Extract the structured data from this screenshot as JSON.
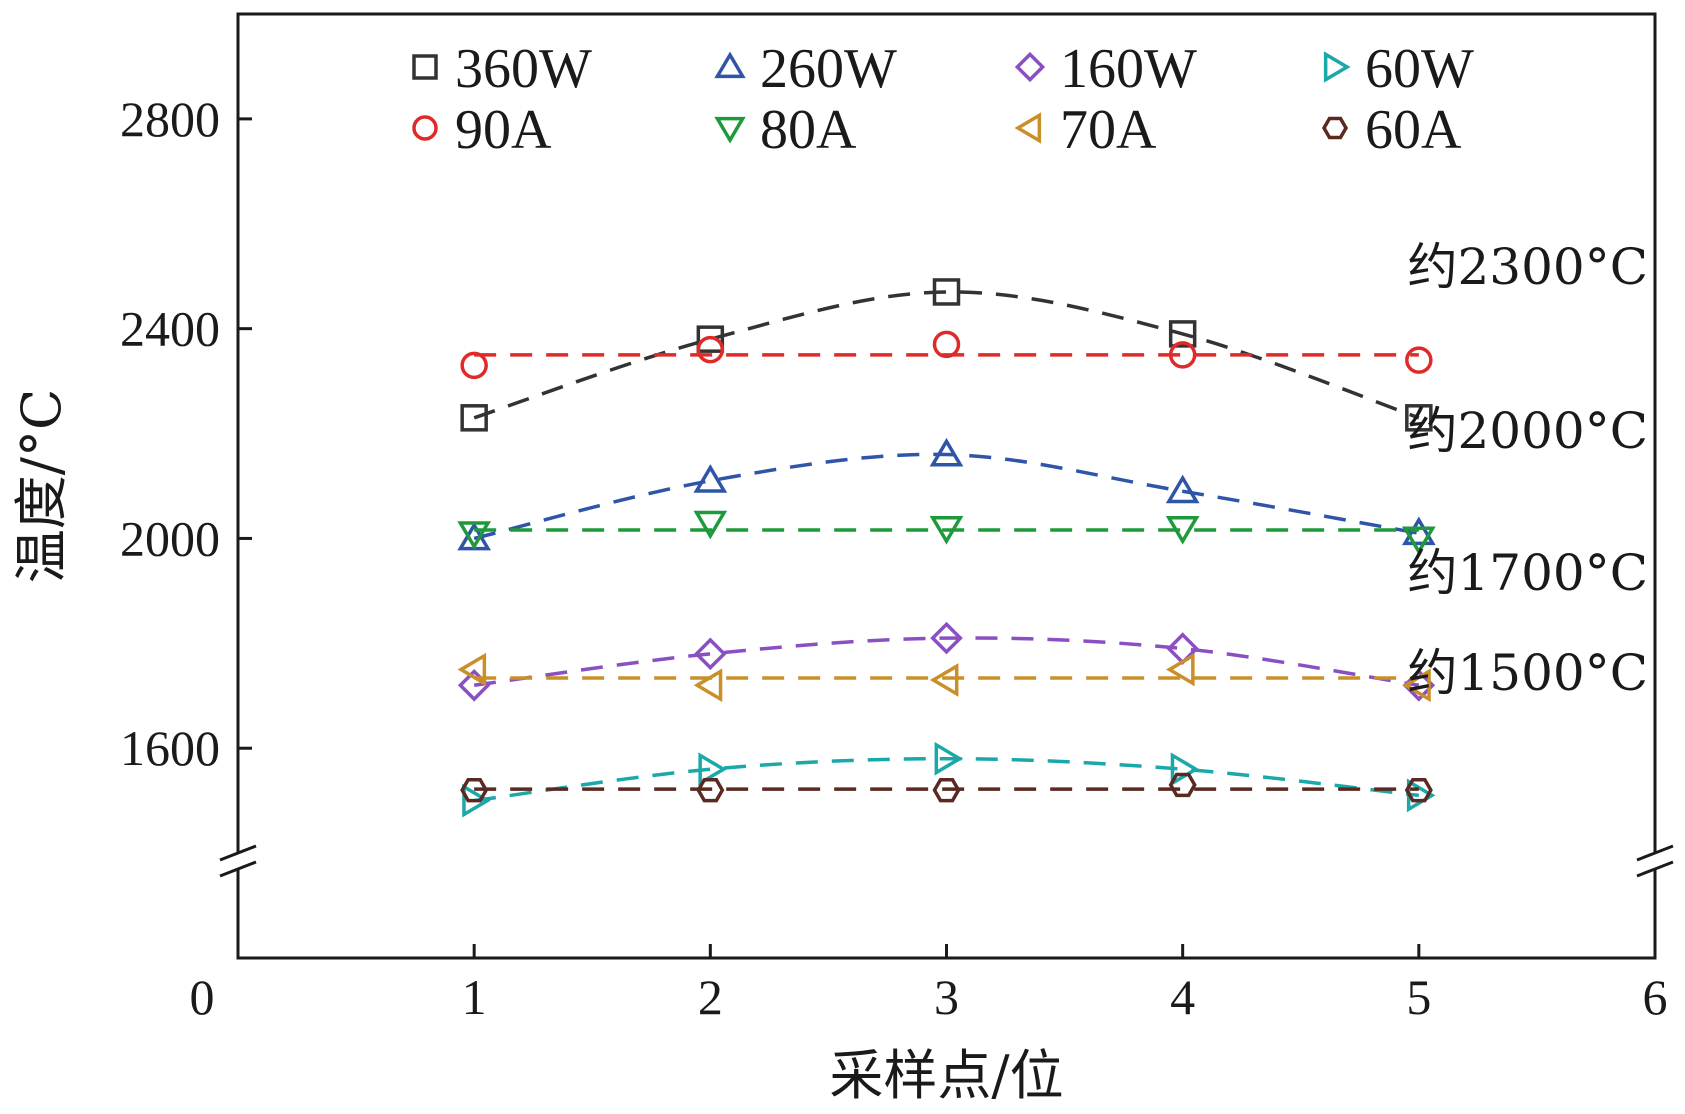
{
  "chart_data": {
    "type": "line",
    "xlabel": "采样点/位",
    "ylabel": "温度/°C",
    "xlim": [
      0,
      6
    ],
    "ylim": [
      1200,
      3000
    ],
    "axis_break": "y-axis, below 1600",
    "x_ticks": [
      "0",
      "1",
      "2",
      "3",
      "4",
      "5",
      "6"
    ],
    "y_ticks": [
      "1600",
      "2000",
      "2400",
      "2800"
    ],
    "x": [
      1,
      2,
      3,
      4,
      5
    ],
    "legend_position": "top, 4 columns",
    "series": [
      {
        "name": "360W",
        "color": "#333333",
        "marker": "square",
        "values": [
          2230,
          2380,
          2470,
          2390,
          2230
        ]
      },
      {
        "name": "260W",
        "color": "#2e55a8",
        "marker": "triangle-up",
        "values": [
          2000,
          2110,
          2160,
          2090,
          2010
        ]
      },
      {
        "name": "160W",
        "color": "#8a4fc2",
        "marker": "diamond",
        "values": [
          1720,
          1780,
          1810,
          1790,
          1720
        ]
      },
      {
        "name": "60W",
        "color": "#1aa8a8",
        "marker": "triangle-right",
        "values": [
          1500,
          1560,
          1580,
          1560,
          1510
        ]
      },
      {
        "name": "90A",
        "color": "#e02a2a",
        "marker": "circle",
        "values": [
          2330,
          2360,
          2370,
          2350,
          2340
        ]
      },
      {
        "name": "80A",
        "color": "#1f9a3a",
        "marker": "triangle-down",
        "values": [
          2010,
          2030,
          2020,
          2020,
          2000
        ]
      },
      {
        "name": "70A",
        "color": "#c9902a",
        "marker": "triangle-left",
        "values": [
          1750,
          1720,
          1730,
          1750,
          1720
        ]
      },
      {
        "name": "60A",
        "color": "#5a2a22",
        "marker": "hexagon",
        "values": [
          1520,
          1520,
          1520,
          1530,
          1520
        ]
      }
    ],
    "annotations": [
      {
        "text": "约2300°C",
        "value": 2300
      },
      {
        "text": "约2000°C",
        "value": 2000
      },
      {
        "text": "约1700°C",
        "value": 1700
      },
      {
        "text": "约1500°C",
        "value": 1500
      }
    ]
  }
}
